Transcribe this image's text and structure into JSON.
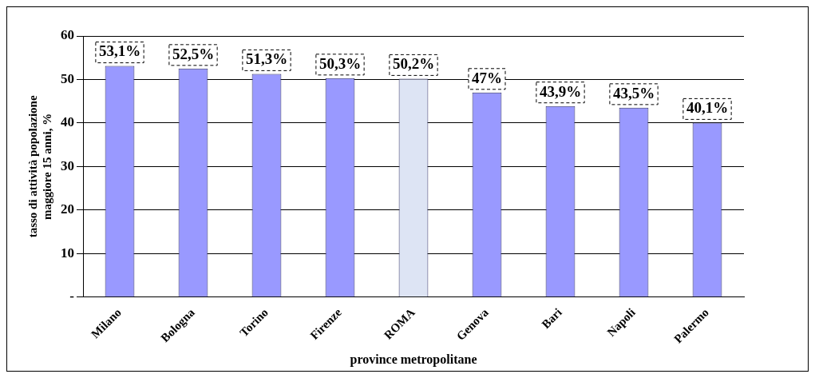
{
  "chart_data": {
    "type": "bar",
    "xlabel": "province metropolitane",
    "ylabel": "tasso di attività popolazione maggiore 15 anni, %",
    "categories": [
      "Milano",
      "Bologna",
      "Torino",
      "Firenze",
      "ROMA",
      "Genova",
      "Bari",
      "Napoli",
      "Palermo"
    ],
    "values": [
      53.1,
      52.5,
      51.3,
      50.3,
      50.2,
      47,
      43.9,
      43.5,
      40.1
    ],
    "value_labels": [
      "53,1%",
      "52,5%",
      "51,3%",
      "50,3%",
      "50,2%",
      "47%",
      "43,9%",
      "43,5%",
      "40,1%"
    ],
    "colors": [
      "#9999ff",
      "#9999ff",
      "#9999ff",
      "#9999ff",
      "#dde4f4",
      "#9999ff",
      "#9999ff",
      "#9999ff",
      "#9999ff"
    ],
    "ylim": [
      0,
      60
    ],
    "yticks": [
      {
        "value": 0,
        "label": "-"
      },
      10,
      20,
      30,
      40,
      50,
      60
    ],
    "grid": "y",
    "legend": false
  }
}
